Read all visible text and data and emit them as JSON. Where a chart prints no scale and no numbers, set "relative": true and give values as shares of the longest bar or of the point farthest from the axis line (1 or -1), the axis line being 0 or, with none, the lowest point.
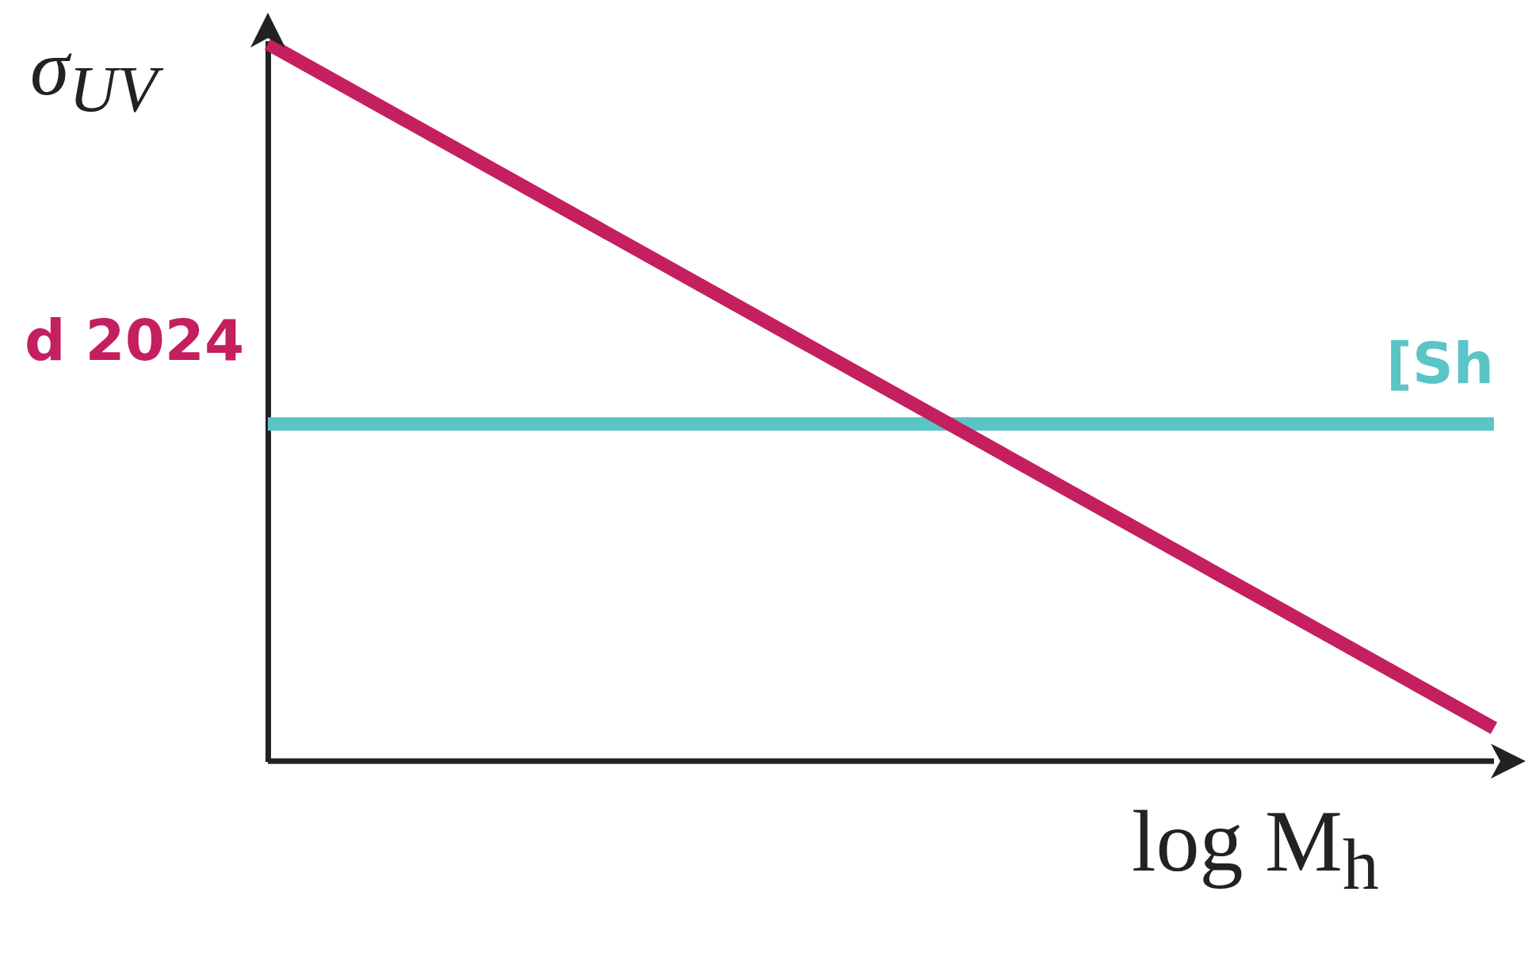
{
  "chart_data": {
    "type": "line",
    "relative": true,
    "xlabel": "log M$_{h}$",
    "ylabel": "σ$_{UV}$",
    "categories": [
      null,
      null
    ],
    "series": [
      {
        "name": "d 2024",
        "color": "#c41f5e",
        "values": [
          1,
          0.046
        ]
      },
      {
        "name": "[Sh",
        "color": "#5bc4c6",
        "values": [
          0.47,
          0.47
        ]
      }
    ],
    "ref_lines": [
      {
        "axis": "y",
        "value": 0,
        "color": "#222222"
      }
    ],
    "grid": false,
    "legend": false,
    "marker": "none",
    "line_style": "solid"
  }
}
